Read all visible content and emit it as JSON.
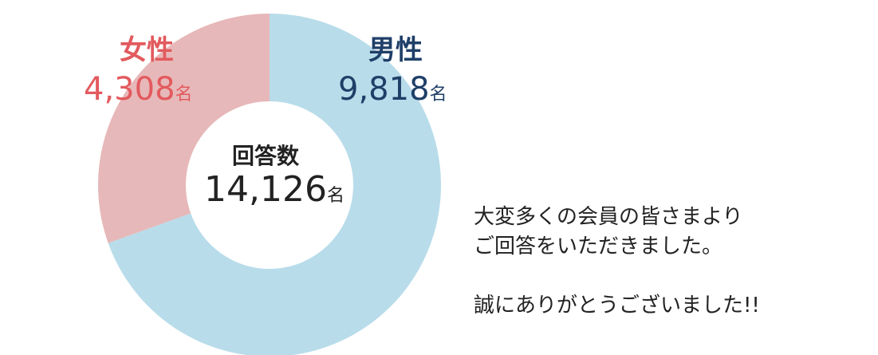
{
  "chart_data": {
    "type": "pie",
    "categories": [
      "男性",
      "女性"
    ],
    "values": [
      9818,
      4308
    ],
    "unit": "名",
    "colors": [
      "#b8dcea",
      "#e7b8b9"
    ],
    "center_label": "回答数",
    "center_value": "14,126",
    "labels": [
      {
        "name": "男性",
        "value": "9,818"
      },
      {
        "name": "女性",
        "value": "4,308"
      }
    ]
  },
  "message": {
    "line1": "大変多くの会員の皆さまより",
    "line2": "ご回答をいただきました。",
    "line3": "誠にありがとうございました!!"
  }
}
